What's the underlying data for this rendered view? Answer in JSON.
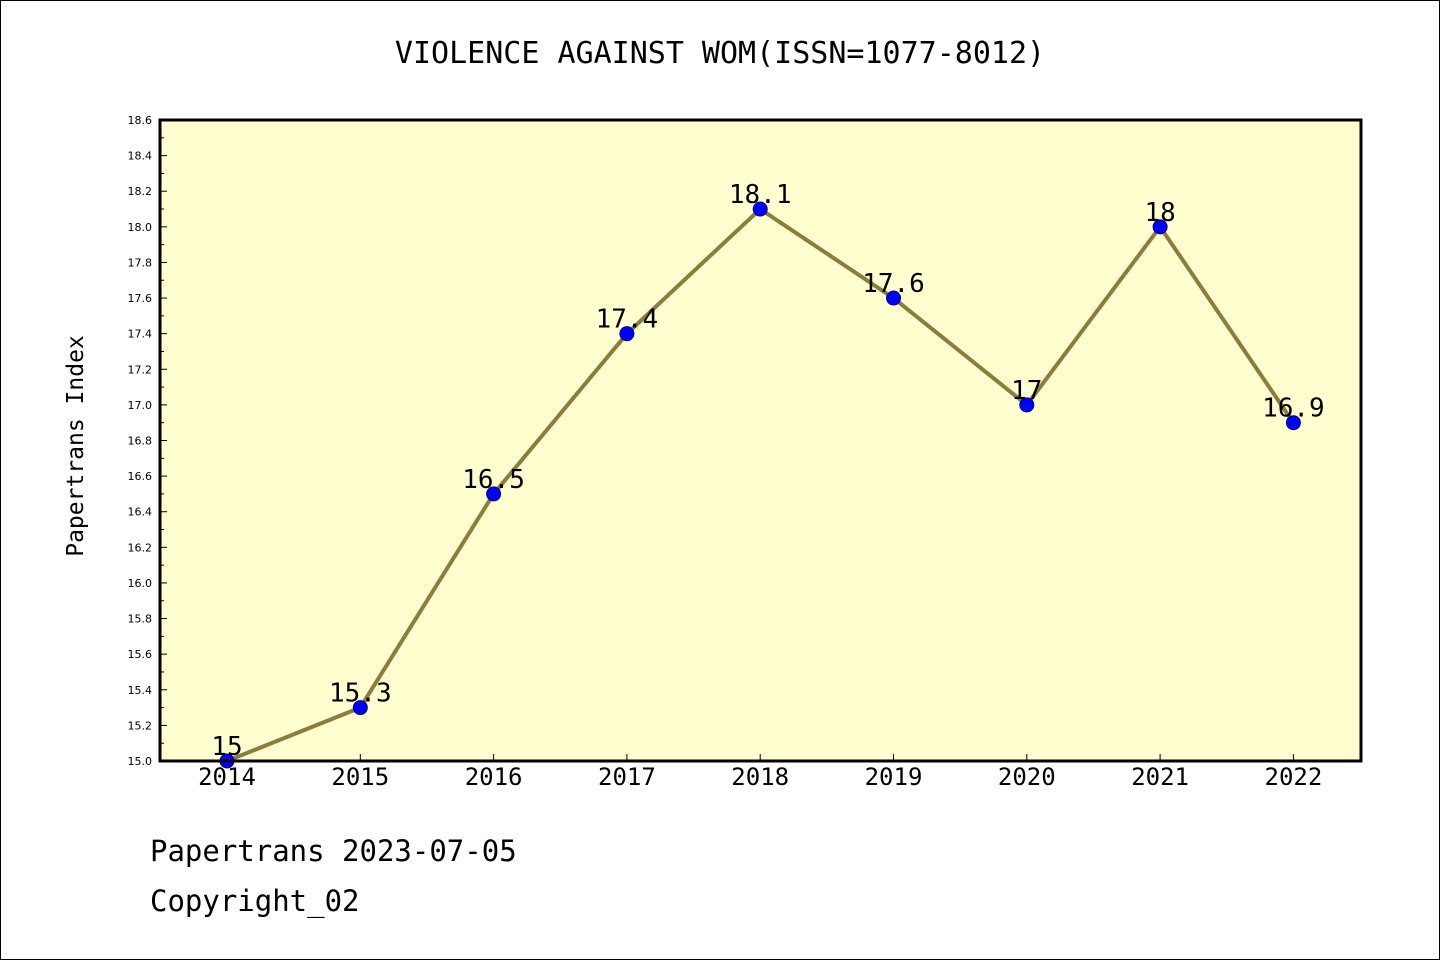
{
  "chart_data": {
    "type": "line",
    "title": "VIOLENCE AGAINST WOM(ISSN=1077-8012)",
    "xlabel": "",
    "ylabel": "Papertrans Index",
    "categories": [
      "2014",
      "2015",
      "2016",
      "2017",
      "2018",
      "2019",
      "2020",
      "2021",
      "2022"
    ],
    "values": [
      15,
      15.3,
      16.5,
      17.4,
      18.1,
      17.6,
      17,
      18,
      16.9
    ],
    "data_labels": [
      "15",
      "15.3",
      "16.5",
      "17.4",
      "18.1",
      "17.6",
      "17",
      "18",
      "16.9"
    ],
    "ylim": [
      15.0,
      18.6
    ],
    "yticks": [
      "15.0",
      "15.2",
      "15.4",
      "15.6",
      "15.8",
      "16.0",
      "16.2",
      "16.4",
      "16.6",
      "16.8",
      "17.0",
      "17.2",
      "17.4",
      "17.6",
      "17.8",
      "18.0",
      "18.2",
      "18.4",
      "18.6"
    ],
    "grid": false,
    "colors": {
      "plot_background": "#ffffd0",
      "line": "#8b7d3a",
      "marker": "#0000ff"
    }
  },
  "footer": {
    "date_line": "Papertrans 2023-07-05",
    "copyright_line": "Copyright_02"
  }
}
